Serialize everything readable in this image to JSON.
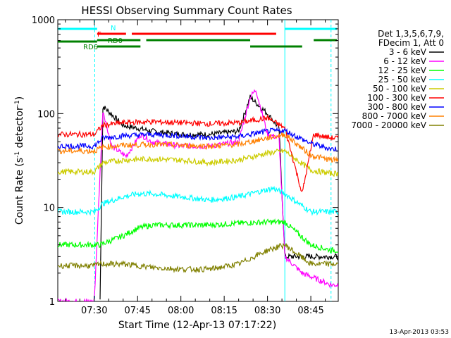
{
  "chart_data": {
    "type": "line",
    "title": "HESSI Observing Summary Count Rates",
    "xlabel": "Start Time (12-Apr-13 07:17:22)",
    "ylabel": "Count Rate (s⁻¹ detector⁻¹)",
    "ylabel_main": "Count Rate (s",
    "ylabel_sup1": "-1",
    "ylabel_mid": " detector",
    "ylabel_sup2": "-1",
    "ylabel_end": ")",
    "yscale": "log",
    "ylim": [
      1,
      1000
    ],
    "xlim": [
      "07:17:22",
      "08:54:30"
    ],
    "x_tick_labels": [
      "07:30",
      "07:45",
      "08:00",
      "08:15",
      "08:30",
      "08:45"
    ],
    "y_tick_labels": [
      "1",
      "10",
      "100",
      "1000"
    ],
    "legend_placement": "right",
    "legend_header": [
      "Det 1,3,5,6,7,9,",
      "FDecim 1, Att 0"
    ],
    "timestamp": "13-Apr-2013 03:53",
    "flags": [
      {
        "label": "N",
        "color": "#00ffff"
      },
      {
        "label": "F",
        "color": "#ff0000"
      },
      {
        "label": "RD0",
        "color": "#008000"
      },
      {
        "label": "RD6",
        "color": "#008000"
      }
    ],
    "series": [
      {
        "name": "3 - 6 keV",
        "color": "#000000",
        "x": [
          "07:17",
          "07:30",
          "07:32",
          "07:33",
          "07:40",
          "07:50",
          "08:00",
          "08:10",
          "08:20",
          "08:24",
          "08:26",
          "08:30",
          "08:34",
          "08:36"
        ],
        "y": [
          null,
          null,
          1,
          120,
          75,
          65,
          60,
          60,
          65,
          150,
          130,
          100,
          70,
          3
        ]
      },
      {
        "name": "6 - 12 keV",
        "color": "#ff00ff",
        "x": [
          "07:17",
          "07:30",
          "07:33",
          "07:36",
          "07:41",
          "07:46",
          "07:50",
          "08:00",
          "08:10",
          "08:20",
          "08:24",
          "08:26",
          "08:30",
          "08:34",
          "08:36",
          "08:42",
          "08:52"
        ],
        "y": [
          1,
          1,
          110,
          45,
          35,
          60,
          50,
          45,
          45,
          50,
          150,
          180,
          60,
          55,
          3,
          2,
          1.5
        ]
      },
      {
        "name": "12 - 25 keV",
        "color": "#00ff00",
        "x": [
          "07:17",
          "07:30",
          "07:32",
          "07:40",
          "07:45",
          "07:50",
          "08:00",
          "08:10",
          "08:20",
          "08:30",
          "08:36",
          "08:45",
          "08:52"
        ],
        "y": [
          4,
          4,
          4,
          5,
          6,
          6.5,
          6.5,
          6.5,
          6.8,
          7,
          7,
          4,
          3.5
        ]
      },
      {
        "name": "25 - 50 keV",
        "color": "#00ffff",
        "x": [
          "07:17",
          "07:30",
          "07:33",
          "07:40",
          "07:45",
          "07:50",
          "08:00",
          "08:10",
          "08:20",
          "08:28",
          "08:32",
          "08:36",
          "08:45",
          "08:52"
        ],
        "y": [
          9,
          9,
          11,
          13,
          14,
          14,
          13,
          12,
          13,
          15,
          16,
          14,
          9,
          9
        ]
      },
      {
        "name": "50 - 100 keV",
        "color": "#cccc00",
        "x": [
          "07:17",
          "07:30",
          "07:33",
          "07:40",
          "07:50",
          "08:00",
          "08:10",
          "08:20",
          "08:30",
          "08:36",
          "08:45",
          "08:52"
        ],
        "y": [
          24,
          24,
          30,
          32,
          33,
          32,
          30,
          32,
          38,
          40,
          25,
          23
        ]
      },
      {
        "name": "100 - 300 keV",
        "color": "#ff0000",
        "x": [
          "07:17",
          "07:30",
          "07:33",
          "07:40",
          "07:50",
          "08:00",
          "08:10",
          "08:20",
          "08:30",
          "08:36",
          "08:42",
          "08:46",
          "08:52"
        ],
        "y": [
          60,
          60,
          75,
          80,
          82,
          80,
          78,
          80,
          90,
          70,
          14,
          60,
          55
        ]
      },
      {
        "name": "300 - 800 keV",
        "color": "#0000ff",
        "x": [
          "07:17",
          "07:30",
          "07:33",
          "07:40",
          "07:50",
          "08:00",
          "08:10",
          "08:20",
          "08:30",
          "08:36",
          "08:45",
          "08:52"
        ],
        "y": [
          45,
          45,
          55,
          58,
          60,
          58,
          55,
          57,
          65,
          66,
          48,
          42
        ]
      },
      {
        "name": "800 - 7000 keV",
        "color": "#ff8000",
        "x": [
          "07:17",
          "07:30",
          "07:33",
          "07:40",
          "07:50",
          "08:00",
          "08:10",
          "08:20",
          "08:30",
          "08:36",
          "08:45",
          "08:52"
        ],
        "y": [
          40,
          40,
          44,
          46,
          47,
          46,
          45,
          47,
          55,
          60,
          36,
          32
        ]
      },
      {
        "name": "7000 - 20000 keV",
        "color": "#808000",
        "x": [
          "07:17",
          "07:30",
          "07:32",
          "07:40",
          "07:50",
          "08:00",
          "08:10",
          "08:20",
          "08:30",
          "08:36",
          "08:45",
          "08:52"
        ],
        "y": [
          2.4,
          2.4,
          2.5,
          2.5,
          2.3,
          2.2,
          2.2,
          2.5,
          3.5,
          4,
          2.5,
          2.5
        ]
      }
    ]
  }
}
